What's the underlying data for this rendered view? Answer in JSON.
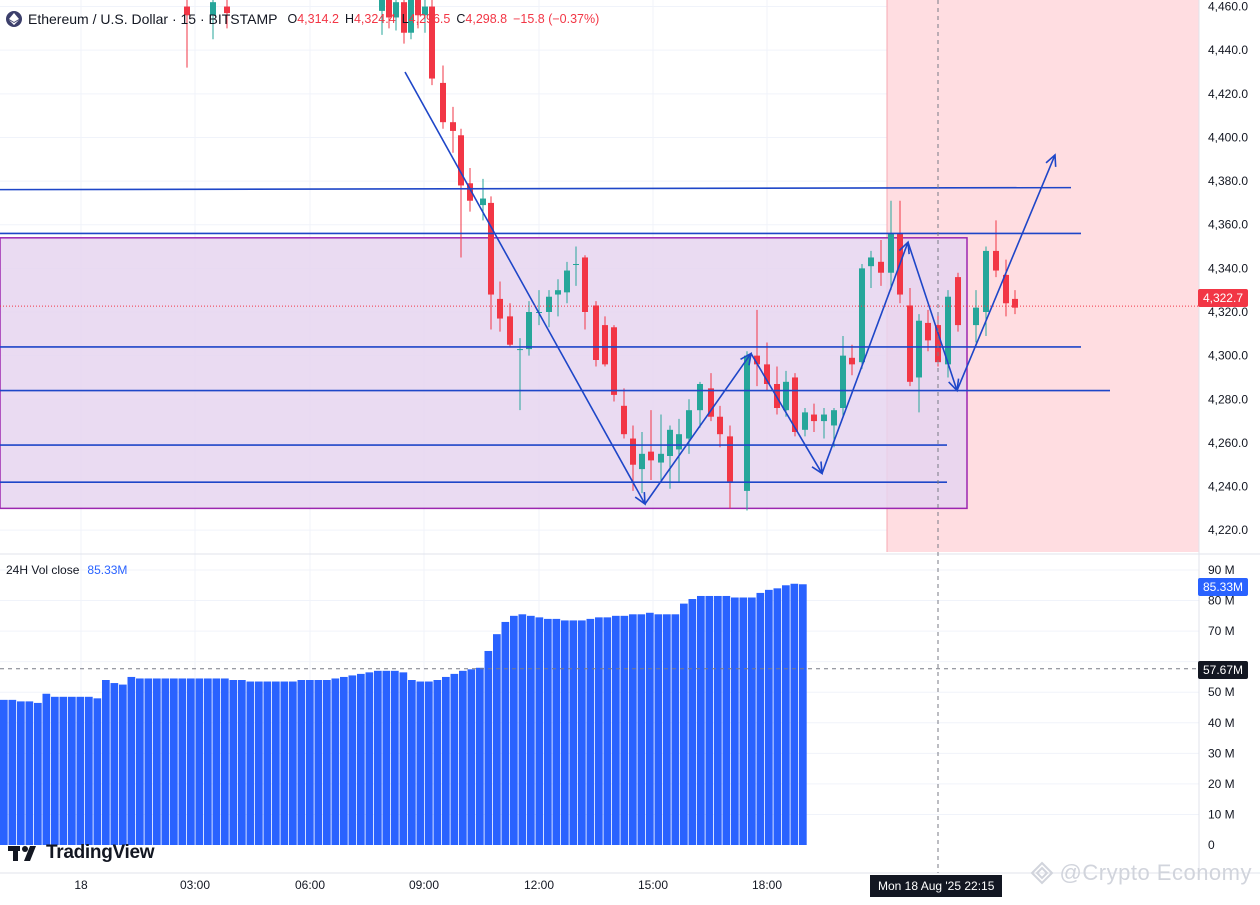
{
  "header": {
    "symbol": "Ethereum / U.S. Dollar · 15 · BITSTAMP",
    "ohlc": [
      {
        "k": "O",
        "v": "4,314.2"
      },
      {
        "k": "H",
        "v": "4,324.4"
      },
      {
        "k": "L",
        "v": "4,296.5"
      },
      {
        "k": "C",
        "v": "4,298.8"
      },
      {
        "k": "",
        "v": "−15.8 (−0.37%)"
      }
    ]
  },
  "price_axis": {
    "labels": [
      "4,460.0",
      "4,440.0",
      "4,420.0",
      "4,400.0",
      "4,380.0",
      "4,360.0",
      "4,340.0",
      "4,320.0",
      "4,300.0",
      "4,280.0",
      "4,260.0",
      "4,240.0",
      "4,220.0"
    ],
    "current_price": "4,322.7"
  },
  "volume_panel": {
    "title": "24H Vol close",
    "value": "85.33M",
    "axis_labels": [
      "90 M",
      "80 M",
      "70 M",
      "60 M",
      "50 M",
      "40 M",
      "30 M",
      "20 M",
      "10 M",
      "0"
    ],
    "current_tag": "85.33M",
    "crosshair_tag": "57.67M"
  },
  "time_axis": {
    "labels": [
      "18",
      "03:00",
      "06:00",
      "09:00",
      "12:00",
      "15:00",
      "18:00"
    ],
    "crosshair_label": "Mon 18 Aug '25   22:15"
  },
  "branding": {
    "logo_text": "TradingView",
    "watermark": "@Crypto Economy"
  },
  "colors": {
    "up": "#26a69a",
    "down": "#f23645",
    "drawing": "#1e46c8",
    "volume": "#2962ff",
    "zone_fill": "#e6d5f0",
    "zone_border": "#9c27b0",
    "highlight": "#ffdde1"
  },
  "chart_data": {
    "type": "candlestick",
    "symbol": "ETHUSD",
    "interval": "15",
    "exchange": "BITSTAMP",
    "y_range": [
      4210,
      4463
    ],
    "candles": [
      {
        "x": 187,
        "o": 4460,
        "h": 4470,
        "l": 4432,
        "c": 4456
      },
      {
        "x": 213,
        "o": 4456,
        "h": 4470,
        "l": 4445,
        "c": 4462
      },
      {
        "x": 227,
        "o": 4460,
        "h": 4468,
        "l": 4450,
        "c": 4457
      },
      {
        "x": 382,
        "o": 4458,
        "h": 4470,
        "l": 4447,
        "c": 4463
      },
      {
        "x": 389,
        "o": 4463,
        "h": 4468,
        "l": 4450,
        "c": 4455
      },
      {
        "x": 396,
        "o": 4455,
        "h": 4468,
        "l": 4449,
        "c": 4462
      },
      {
        "x": 404,
        "o": 4462,
        "h": 4468,
        "l": 4443,
        "c": 4448
      },
      {
        "x": 411,
        "o": 4448,
        "h": 4468,
        "l": 4445,
        "c": 4463
      },
      {
        "x": 418,
        "o": 4463,
        "h": 4470,
        "l": 4450,
        "c": 4456
      },
      {
        "x": 425,
        "o": 4456,
        "h": 4468,
        "l": 4448,
        "c": 4460
      },
      {
        "x": 432,
        "o": 4460,
        "h": 4465,
        "l": 4424,
        "c": 4427
      },
      {
        "x": 443,
        "o": 4425,
        "h": 4433,
        "l": 4404,
        "c": 4407
      },
      {
        "x": 453,
        "o": 4407,
        "h": 4414,
        "l": 4393,
        "c": 4403
      },
      {
        "x": 461,
        "o": 4401,
        "h": 4404,
        "l": 4345,
        "c": 4378
      },
      {
        "x": 470,
        "o": 4379,
        "h": 4386,
        "l": 4366,
        "c": 4371
      },
      {
        "x": 483,
        "o": 4369,
        "h": 4381,
        "l": 4362,
        "c": 4372
      },
      {
        "x": 491,
        "o": 4370,
        "h": 4373,
        "l": 4312,
        "c": 4328
      },
      {
        "x": 500,
        "o": 4326,
        "h": 4334,
        "l": 4311,
        "c": 4317
      },
      {
        "x": 510,
        "o": 4318,
        "h": 4324,
        "l": 4304,
        "c": 4305
      },
      {
        "x": 520,
        "o": 4303,
        "h": 4308,
        "l": 4275,
        "c": 4303
      },
      {
        "x": 529,
        "o": 4303,
        "h": 4325,
        "l": 4300,
        "c": 4320
      },
      {
        "x": 539,
        "o": 4320,
        "h": 4330,
        "l": 4314,
        "c": 4320
      },
      {
        "x": 549,
        "o": 4320,
        "h": 4330,
        "l": 4313,
        "c": 4327
      },
      {
        "x": 558,
        "o": 4328,
        "h": 4335,
        "l": 4318,
        "c": 4330
      },
      {
        "x": 567,
        "o": 4329,
        "h": 4343,
        "l": 4324,
        "c": 4339
      },
      {
        "x": 576,
        "o": 4342,
        "h": 4350,
        "l": 4332,
        "c": 4342
      },
      {
        "x": 585,
        "o": 4345,
        "h": 4346,
        "l": 4312,
        "c": 4320
      },
      {
        "x": 596,
        "o": 4323,
        "h": 4325,
        "l": 4295,
        "c": 4298
      },
      {
        "x": 605,
        "o": 4314,
        "h": 4318,
        "l": 4295,
        "c": 4296
      },
      {
        "x": 614,
        "o": 4313,
        "h": 4314,
        "l": 4279,
        "c": 4282
      },
      {
        "x": 624,
        "o": 4277,
        "h": 4285,
        "l": 4262,
        "c": 4264
      },
      {
        "x": 633,
        "o": 4262,
        "h": 4268,
        "l": 4238,
        "c": 4250
      },
      {
        "x": 642,
        "o": 4248,
        "h": 4265,
        "l": 4237,
        "c": 4255
      },
      {
        "x": 651,
        "o": 4256,
        "h": 4275,
        "l": 4243,
        "c": 4252
      },
      {
        "x": 661,
        "o": 4251,
        "h": 4273,
        "l": 4243,
        "c": 4255
      },
      {
        "x": 670,
        "o": 4254,
        "h": 4268,
        "l": 4239,
        "c": 4266
      },
      {
        "x": 679,
        "o": 4257,
        "h": 4271,
        "l": 4242,
        "c": 4264
      },
      {
        "x": 689,
        "o": 4262,
        "h": 4280,
        "l": 4255,
        "c": 4275
      },
      {
        "x": 700,
        "o": 4275,
        "h": 4288,
        "l": 4267,
        "c": 4287
      },
      {
        "x": 711,
        "o": 4285,
        "h": 4292,
        "l": 4270,
        "c": 4272
      },
      {
        "x": 720,
        "o": 4272,
        "h": 4277,
        "l": 4258,
        "c": 4264
      },
      {
        "x": 730,
        "o": 4263,
        "h": 4268,
        "l": 4230,
        "c": 4242
      },
      {
        "x": 747,
        "o": 4238,
        "h": 4302,
        "l": 4229,
        "c": 4300
      },
      {
        "x": 757,
        "o": 4300,
        "h": 4321,
        "l": 4286,
        "c": 4296
      },
      {
        "x": 767,
        "o": 4296,
        "h": 4306,
        "l": 4284,
        "c": 4287
      },
      {
        "x": 777,
        "o": 4287,
        "h": 4295,
        "l": 4273,
        "c": 4276
      },
      {
        "x": 786,
        "o": 4275,
        "h": 4293,
        "l": 4272,
        "c": 4288
      },
      {
        "x": 795,
        "o": 4290,
        "h": 4292,
        "l": 4263,
        "c": 4265
      },
      {
        "x": 805,
        "o": 4266,
        "h": 4276,
        "l": 4263,
        "c": 4274
      },
      {
        "x": 814,
        "o": 4273,
        "h": 4278,
        "l": 4265,
        "c": 4270
      },
      {
        "x": 824,
        "o": 4270,
        "h": 4276,
        "l": 4262,
        "c": 4273
      },
      {
        "x": 834,
        "o": 4268,
        "h": 4276,
        "l": 4258,
        "c": 4275
      },
      {
        "x": 843,
        "o": 4276,
        "h": 4309,
        "l": 4272,
        "c": 4300
      },
      {
        "x": 852,
        "o": 4299,
        "h": 4305,
        "l": 4291,
        "c": 4296
      },
      {
        "x": 862,
        "o": 4297,
        "h": 4342,
        "l": 4294,
        "c": 4340
      },
      {
        "x": 871,
        "o": 4341,
        "h": 4348,
        "l": 4331,
        "c": 4345
      },
      {
        "x": 881,
        "o": 4343,
        "h": 4353,
        "l": 4332,
        "c": 4338
      },
      {
        "x": 891,
        "o": 4338,
        "h": 4371,
        "l": 4330,
        "c": 4356
      },
      {
        "x": 900,
        "o": 4356,
        "h": 4371,
        "l": 4324,
        "c": 4328
      },
      {
        "x": 910,
        "o": 4323,
        "h": 4331,
        "l": 4286,
        "c": 4288
      },
      {
        "x": 919,
        "o": 4290,
        "h": 4319,
        "l": 4274,
        "c": 4316
      },
      {
        "x": 928,
        "o": 4315,
        "h": 4321,
        "l": 4302,
        "c": 4307
      },
      {
        "x": 938,
        "o": 4314,
        "h": 4320,
        "l": 4295,
        "c": 4297
      },
      {
        "x": 948,
        "o": 4296,
        "h": 4330,
        "l": 4290,
        "c": 4327
      },
      {
        "x": 958,
        "o": 4336,
        "h": 4338,
        "l": 4311,
        "c": 4314
      },
      {
        "x": 976,
        "o": 4314,
        "h": 4330,
        "l": 4306,
        "c": 4322
      },
      {
        "x": 986,
        "o": 4320,
        "h": 4350,
        "l": 4309,
        "c": 4348
      },
      {
        "x": 996,
        "o": 4348,
        "h": 4362,
        "l": 4336,
        "c": 4339
      },
      {
        "x": 1006,
        "o": 4337,
        "h": 4344,
        "l": 4318,
        "c": 4324
      },
      {
        "x": 1015,
        "o": 4326,
        "h": 4330,
        "l": 4319,
        "c": 4322
      }
    ],
    "volume_series": {
      "name": "24H Vol close",
      "x_start": 0,
      "bar_step": 8.5,
      "x_end": 887,
      "values": [
        47.5,
        47.5,
        47,
        47,
        46.5,
        49.5,
        48.5,
        48.5,
        48.5,
        48.5,
        48.5,
        48,
        54,
        53,
        52.5,
        55,
        54.5,
        54.5,
        54.5,
        54.5,
        54.5,
        54.5,
        54.5,
        54.5,
        54.5,
        54.5,
        54.5,
        54,
        54,
        53.5,
        53.5,
        53.5,
        53.5,
        53.5,
        53.5,
        54,
        54,
        54,
        54,
        54.5,
        55,
        55.5,
        56,
        56.5,
        57,
        57,
        57,
        56.5,
        54,
        53.5,
        53.5,
        54,
        55,
        56,
        57,
        57.5,
        58,
        63.5,
        69,
        73,
        75,
        75.5,
        75,
        74.5,
        74,
        74,
        73.5,
        73.5,
        73.5,
        74,
        74.5,
        74.5,
        75,
        75,
        75.5,
        75.5,
        76,
        75.5,
        75.5,
        75.5,
        79,
        80.5,
        81.5,
        81.5,
        81.5,
        81.5,
        81,
        81,
        81,
        82.5,
        83.5,
        84,
        85,
        85.5,
        85.33
      ]
    },
    "drawings": {
      "horizontal_levels": [
        4377,
        4356,
        4304,
        4284,
        4259,
        4242
      ],
      "zone": {
        "top": 4354,
        "bottom": 4230
      },
      "wave_points": [
        [
          405,
          4430
        ],
        [
          645,
          4232
        ],
        [
          751,
          4301
        ],
        [
          822,
          4246
        ],
        [
          908,
          4352
        ],
        [
          957,
          4284
        ],
        [
          1055,
          4392
        ]
      ]
    }
  }
}
